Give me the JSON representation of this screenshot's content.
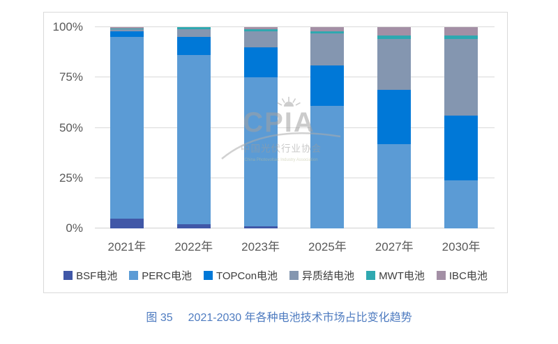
{
  "caption": {
    "figure_label": "图 35",
    "title": "2021-2030 年各种电池技术市场占比变化趋势"
  },
  "watermark": {
    "acronym": "CPIA",
    "org_cn": "中国光伏行业协会",
    "org_en": "China Photovoltaic Industry Association"
  },
  "colors": {
    "grid": "#D9D9D9",
    "frame_border": "#D9D9D9",
    "axis_text": "#595959",
    "legend_text": "#3C3C3C",
    "caption_text": "#4E7BC0",
    "watermark_gray": "#A6A6A6"
  },
  "chart_data": {
    "type": "bar",
    "stacked": true,
    "title": "",
    "xlabel": "",
    "ylabel": "",
    "ylim": [
      0,
      100
    ],
    "grid": true,
    "legend_position": "bottom",
    "categories": [
      "2021年",
      "2022年",
      "2023年",
      "2025年",
      "2027年",
      "2030年"
    ],
    "category_keys": [
      "2021",
      "2022",
      "2023",
      "2025",
      "2027",
      "2030"
    ],
    "yticks": [
      0,
      25,
      50,
      75,
      100
    ],
    "ytick_labels": [
      "0%",
      "25%",
      "50%",
      "75%",
      "100%"
    ],
    "series": [
      {
        "name": "BSF电池",
        "key": "bsf",
        "color": "#4057A7",
        "values": [
          5,
          2,
          1,
          0,
          0,
          0
        ]
      },
      {
        "name": "PERC电池",
        "key": "perc",
        "color": "#5B9BD5",
        "values": [
          90,
          84,
          74,
          61,
          42,
          24
        ]
      },
      {
        "name": "TOPCon电池",
        "key": "topcon",
        "color": "#0078D7",
        "values": [
          3,
          9,
          15,
          20,
          27,
          32
        ]
      },
      {
        "name": "异质结电池",
        "key": "hjt",
        "color": "#8496B0",
        "values": [
          1,
          4,
          8,
          16,
          25,
          38
        ]
      },
      {
        "name": "MWT电池",
        "key": "mwt",
        "color": "#2FA8B0",
        "values": [
          0.5,
          1,
          1,
          1,
          2,
          2
        ]
      },
      {
        "name": "IBC电池",
        "key": "ibc",
        "color": "#A38FA5",
        "values": [
          0.5,
          0,
          1,
          2,
          4,
          4
        ]
      }
    ]
  }
}
